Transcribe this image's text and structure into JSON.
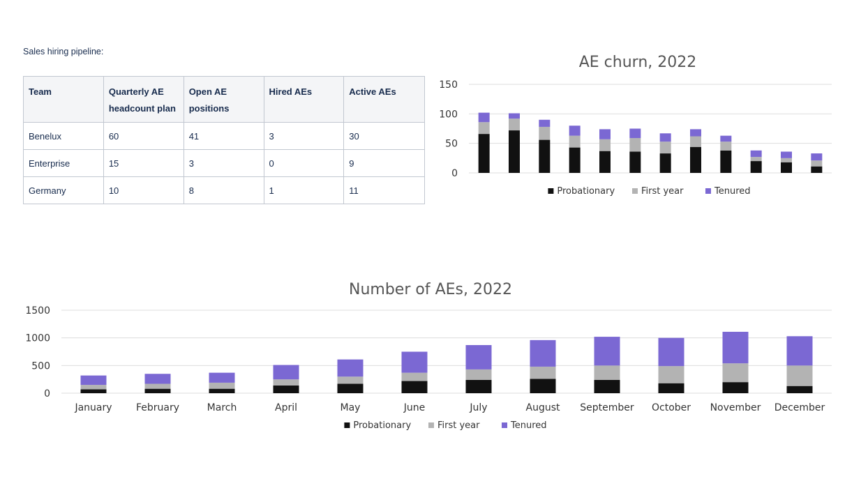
{
  "pipeline": {
    "title": "Sales hiring pipeline:",
    "headers": [
      "Team",
      "Quarterly AE headcount plan",
      "Open AE positions",
      "Hired AEs",
      "Active AEs"
    ],
    "rows": [
      [
        "Benelux",
        "60",
        "41",
        "3",
        "30"
      ],
      [
        "Enterprise",
        "15",
        "3",
        "0",
        "9"
      ],
      [
        "Germany",
        "10",
        "8",
        "1",
        "11"
      ]
    ]
  },
  "colors": {
    "probationary": "#111111",
    "first_year": "#b3b3b3",
    "tenured": "#7b68d3",
    "grid": "#dddddd",
    "text": "#333333",
    "title": "#555555"
  },
  "chart_data": [
    {
      "id": "churn",
      "type": "bar",
      "stacked": true,
      "title": "AE churn, 2022",
      "xlabel": "",
      "ylabel": "",
      "ylim": [
        0,
        150
      ],
      "yticks": [
        0,
        50,
        100,
        150
      ],
      "categories": [
        "January",
        "February",
        "March",
        "April",
        "May",
        "June",
        "July",
        "August",
        "September",
        "October",
        "November",
        "December"
      ],
      "show_category_labels": false,
      "legend_position": "bottom",
      "grid": true,
      "series": [
        {
          "name": "Probationary",
          "color": "#111111",
          "values": [
            66,
            72,
            56,
            43,
            37,
            36,
            33,
            44,
            38,
            20,
            18,
            11
          ]
        },
        {
          "name": "First year",
          "color": "#b3b3b3",
          "values": [
            20,
            20,
            22,
            20,
            20,
            23,
            20,
            18,
            15,
            7,
            7,
            10
          ]
        },
        {
          "name": "Tenured",
          "color": "#7b68d3",
          "values": [
            16,
            9,
            12,
            17,
            17,
            16,
            14,
            12,
            10,
            11,
            11,
            12
          ]
        }
      ]
    },
    {
      "id": "count",
      "type": "bar",
      "stacked": true,
      "title": "Number of AEs, 2022",
      "xlabel": "",
      "ylabel": "",
      "ylim": [
        0,
        1500
      ],
      "yticks": [
        0,
        500,
        1000,
        1500
      ],
      "categories": [
        "January",
        "February",
        "March",
        "April",
        "May",
        "June",
        "July",
        "August",
        "September",
        "October",
        "November",
        "December"
      ],
      "show_category_labels": true,
      "legend_position": "bottom",
      "grid": true,
      "series": [
        {
          "name": "Probationary",
          "color": "#111111",
          "values": [
            70,
            80,
            80,
            140,
            170,
            220,
            240,
            260,
            240,
            180,
            200,
            130
          ]
        },
        {
          "name": "First year",
          "color": "#b3b3b3",
          "values": [
            80,
            90,
            110,
            110,
            130,
            150,
            190,
            220,
            260,
            310,
            340,
            370
          ]
        },
        {
          "name": "Tenured",
          "color": "#7b68d3",
          "values": [
            170,
            180,
            180,
            260,
            310,
            380,
            440,
            480,
            520,
            510,
            570,
            530
          ]
        }
      ]
    }
  ]
}
